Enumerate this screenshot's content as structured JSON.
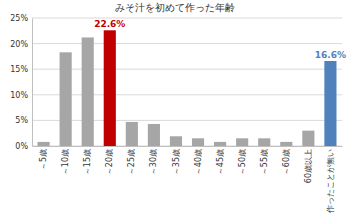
{
  "chart_data": {
    "type": "bar",
    "title": "みそ汁を初めて作った年齢",
    "categories": [
      "～5歳",
      "～10歳",
      "～15歳",
      "～20歳",
      "～25歳",
      "～30歳",
      "～35歳",
      "～40歳",
      "～45歳",
      "～50歳",
      "～55歳",
      "～60歳",
      "60歳以上",
      "作ったことが無い"
    ],
    "values": [
      0.8,
      18.3,
      21.2,
      22.6,
      4.7,
      4.3,
      1.9,
      1.5,
      0.8,
      1.5,
      1.5,
      0.8,
      3.0,
      16.6
    ],
    "value_labels": [
      null,
      null,
      null,
      "22.6%",
      null,
      null,
      null,
      null,
      null,
      null,
      null,
      null,
      null,
      "16.6%"
    ],
    "data_labels": true,
    "colors": [
      "#a6a6a6",
      "#a6a6a6",
      "#a6a6a6",
      "#c00000",
      "#a6a6a6",
      "#a6a6a6",
      "#a6a6a6",
      "#a6a6a6",
      "#a6a6a6",
      "#a6a6a6",
      "#a6a6a6",
      "#a6a6a6",
      "#a6a6a6",
      "#4f81bd"
    ],
    "ylim": [
      0,
      25
    ],
    "yticks": [
      {
        "value": 0,
        "label": "0%"
      },
      {
        "value": 5,
        "label": "5%"
      },
      {
        "value": 10,
        "label": "10%"
      },
      {
        "value": 15,
        "label": "15%"
      },
      {
        "value": 20,
        "label": "20%"
      },
      {
        "value": 25,
        "label": "25%"
      }
    ],
    "grid": true
  }
}
